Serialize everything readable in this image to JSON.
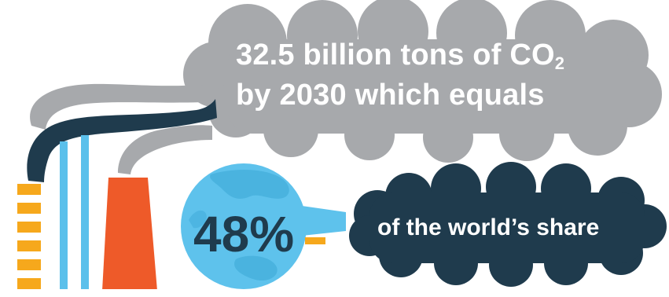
{
  "headline": {
    "line1_prefix": "32.5 billion tons of CO",
    "line1_subscript": "2",
    "line2": "by 2030 which equals"
  },
  "globe": {
    "percent": "48%"
  },
  "share_caption": "of the world’s share",
  "colors": {
    "smoke_gray": "#a7a9ac",
    "smoke_dark": "#1f3b4d",
    "stack_orange": "#f6a81c",
    "stack_blue": "#5bc0eb",
    "stack_red": "#ee5a29",
    "globe_blue": "#5ec2ec"
  },
  "icons": [
    "factory-icon",
    "globe-icon",
    "speech-cloud-icon"
  ]
}
